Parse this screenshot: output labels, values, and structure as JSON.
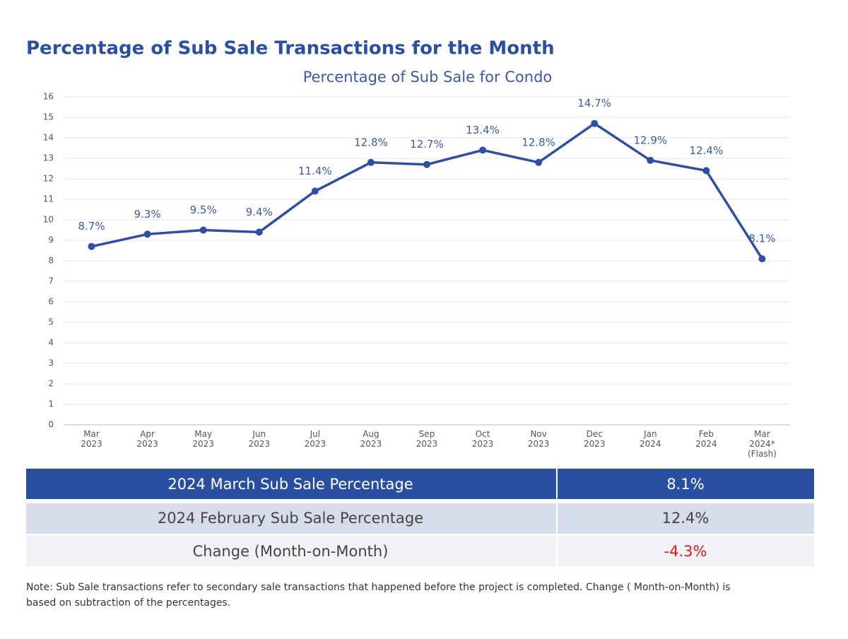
{
  "title": "Percentage of Sub Sale Transactions for the Month",
  "chart_data": {
    "type": "line",
    "title": "Percentage of Sub Sale for Condo",
    "categories": [
      "Mar 2023",
      "Apr 2023",
      "May 2023",
      "Jun 2023",
      "Jul 2023",
      "Aug 2023",
      "Sep 2023",
      "Oct 2023",
      "Nov 2023",
      "Dec 2023",
      "Jan 2024",
      "Feb 2024",
      "Mar 2024* (Flash)"
    ],
    "values": [
      8.7,
      9.3,
      9.5,
      9.4,
      11.4,
      12.8,
      12.7,
      13.4,
      12.8,
      14.7,
      12.9,
      12.4,
      8.1
    ],
    "value_labels": [
      "8.7%",
      "9.3%",
      "9.5%",
      "9.4%",
      "11.4%",
      "12.8%",
      "12.7%",
      "13.4%",
      "12.8%",
      "14.7%",
      "12.9%",
      "12.4%",
      "8.1%"
    ],
    "color": "#2e4fa3",
    "ylim": [
      0,
      16
    ],
    "yticks": [
      0,
      1,
      2,
      3,
      4,
      5,
      6,
      7,
      8,
      9,
      10,
      11,
      12,
      13,
      14,
      15,
      16
    ],
    "grid": true
  },
  "table": {
    "rows": [
      [
        "2024 March Sub Sale Percentage",
        "8.1%"
      ],
      [
        "2024 February Sub Sale Percentage",
        "12.4%"
      ],
      [
        "Change (Month-on-Month)",
        "-4.3%"
      ]
    ]
  },
  "note": [
    "Note: Sub Sale transactions refer to secondary sale transactions that happened before the project is completed. Change ( Month-on-Month) is",
    "based on subtraction of the percentages."
  ]
}
